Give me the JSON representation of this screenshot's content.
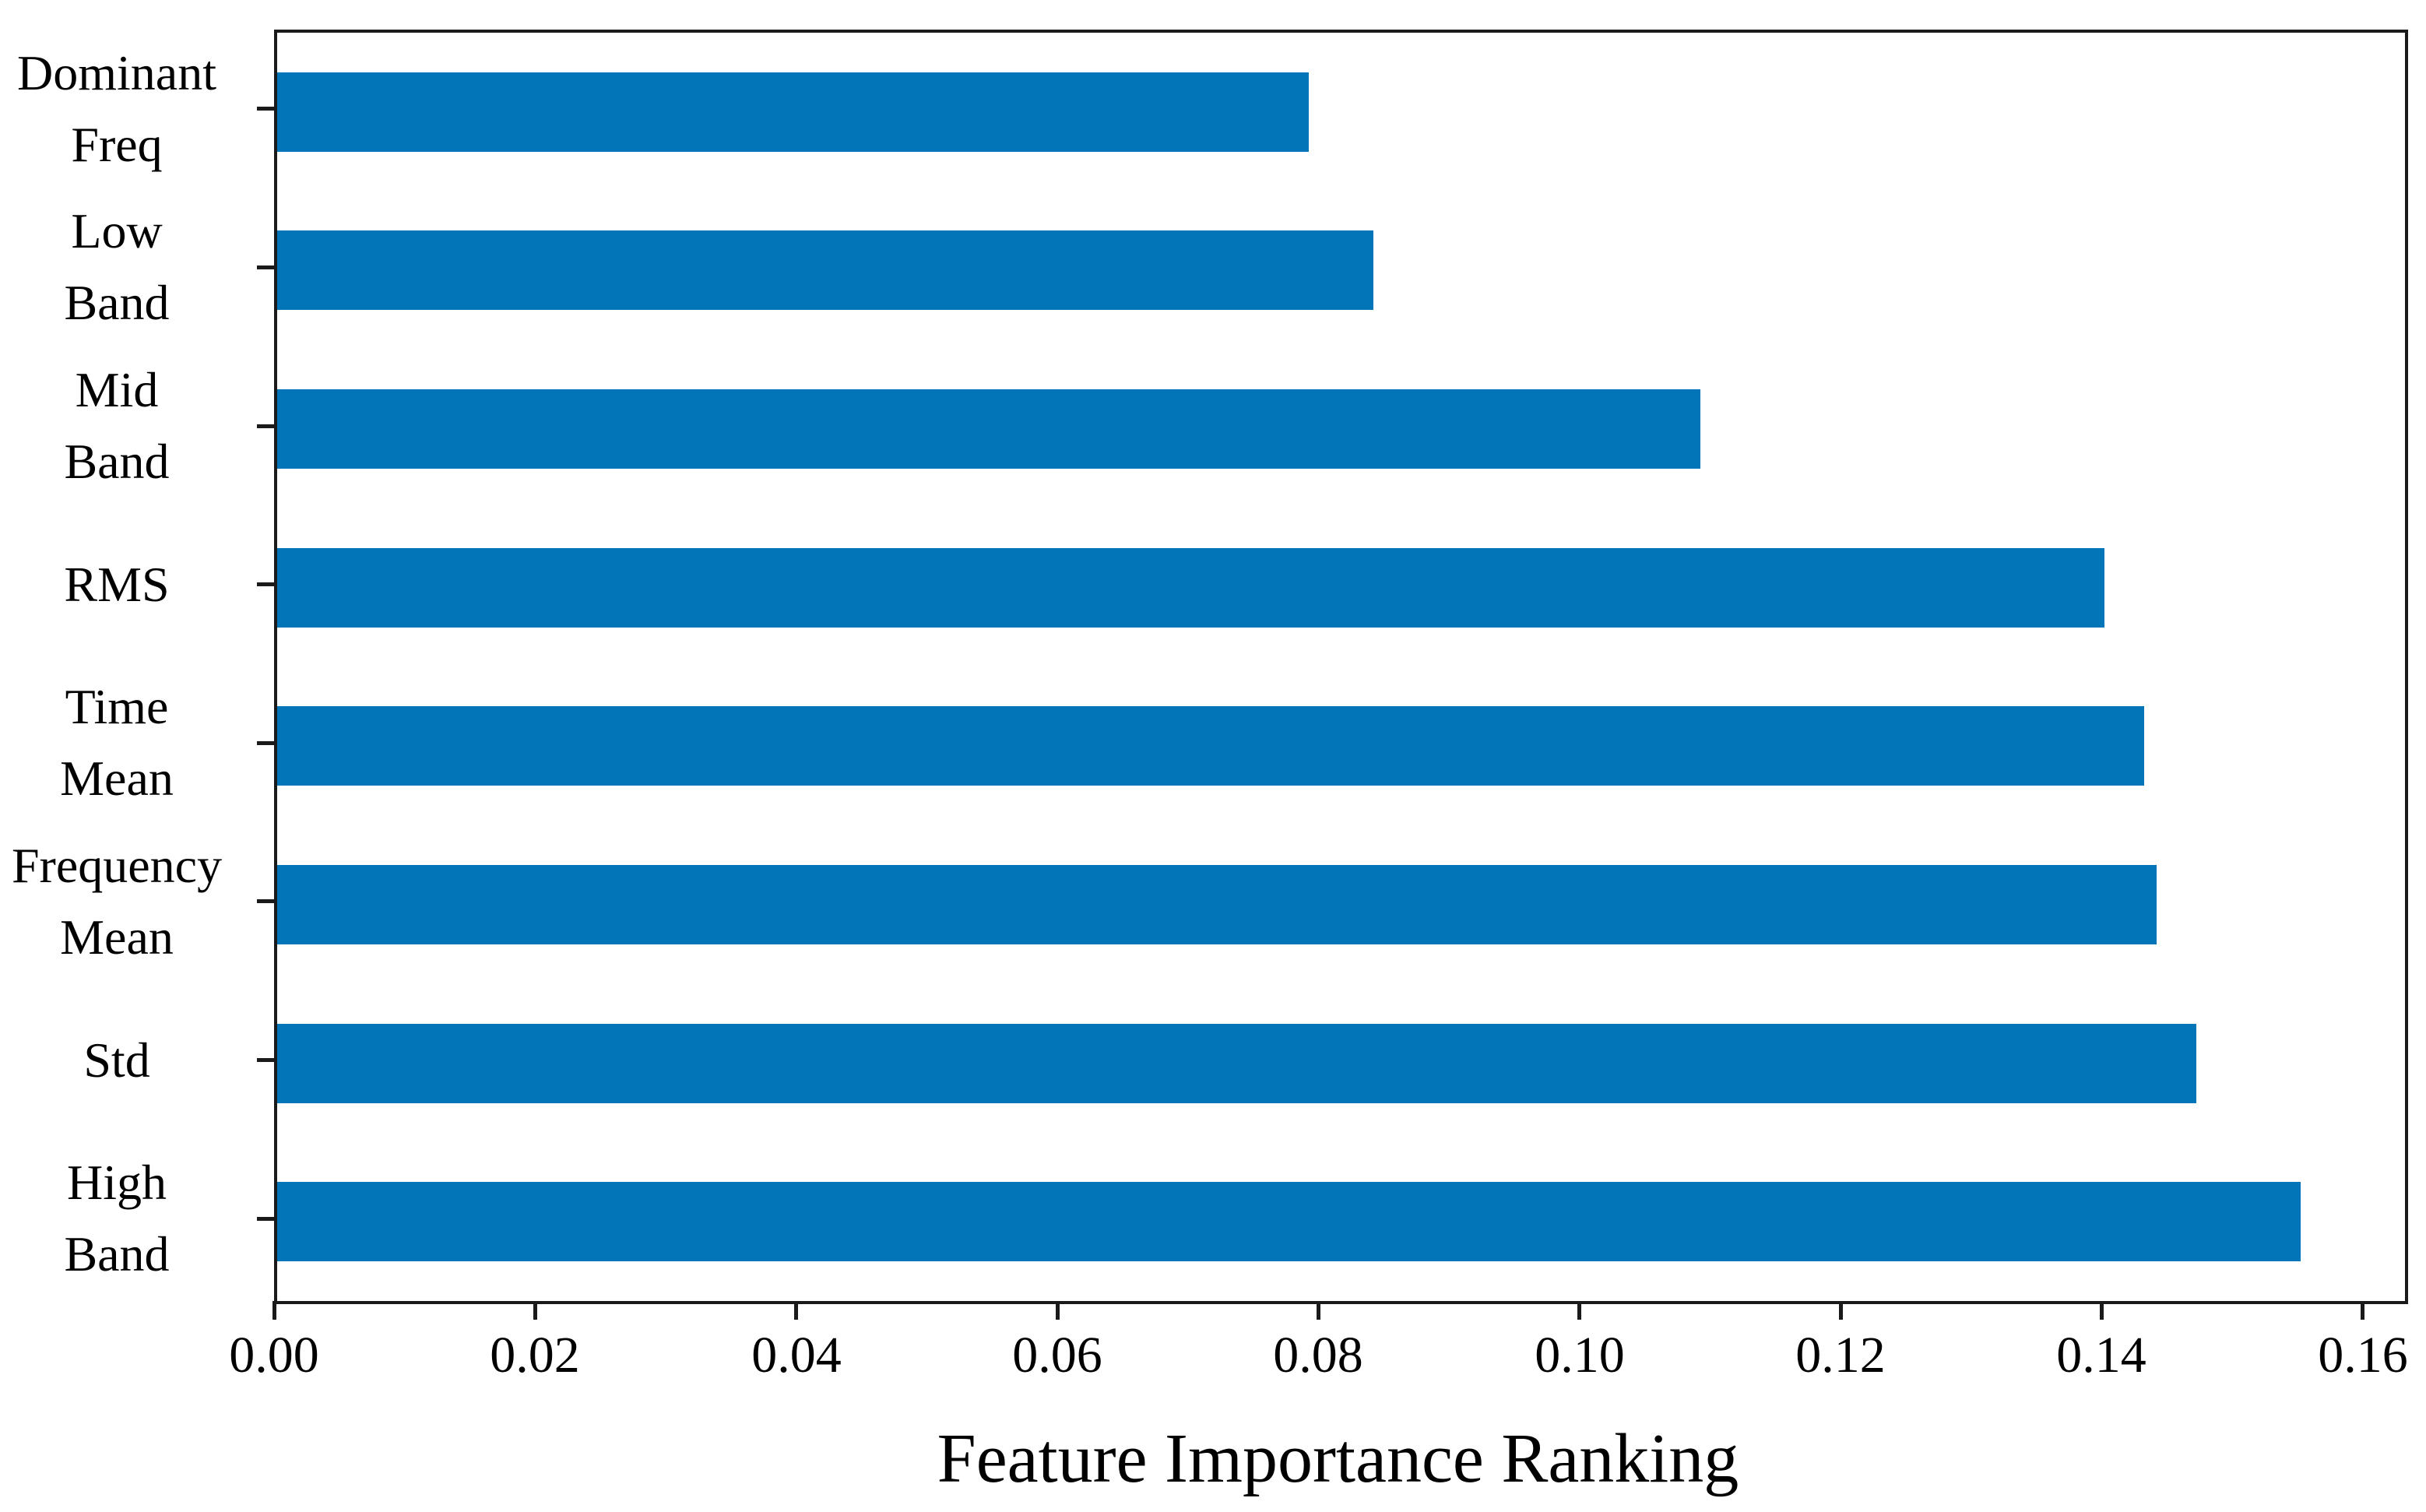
{
  "chart_data": {
    "type": "bar",
    "orientation": "horizontal",
    "title": "",
    "xlabel": "Feature Importance Ranking",
    "ylabel": "",
    "categories": [
      "Dominant Freq",
      "Low Band",
      "Mid Band",
      "RMS",
      "Time Mean",
      "Frequency Mean",
      "Std",
      "High Band"
    ],
    "category_lines": [
      [
        "Dominant",
        "Freq"
      ],
      [
        "Low",
        "Band"
      ],
      [
        "Mid",
        "Band"
      ],
      [
        "RMS"
      ],
      [
        "Time",
        "Mean"
      ],
      [
        "Frequency",
        "Mean"
      ],
      [
        "Std"
      ],
      [
        "High",
        "Band"
      ]
    ],
    "values": [
      0.079,
      0.084,
      0.109,
      0.14,
      0.143,
      0.144,
      0.147,
      0.155
    ],
    "x_ticks": [
      "0.00",
      "0.02",
      "0.04",
      "0.06",
      "0.08",
      "0.10",
      "0.12",
      "0.14",
      "0.16"
    ],
    "x_tick_values": [
      0.0,
      0.02,
      0.04,
      0.06,
      0.08,
      0.1,
      0.12,
      0.14,
      0.16
    ],
    "xlim": [
      0,
      0.163
    ],
    "grid": false,
    "legend": "none",
    "bar_color": "#0175b8",
    "axis_color": "#1a1a1a",
    "text_color": "#000000",
    "background_color": "#ffffff"
  }
}
